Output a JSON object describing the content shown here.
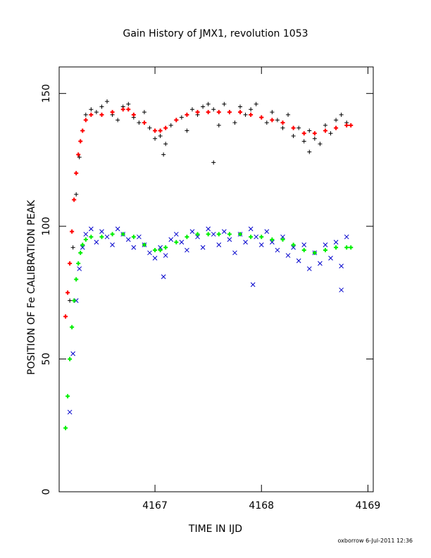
{
  "chart_data": {
    "type": "scatter",
    "title": "Gain History of JMX1, revolution 1053",
    "xlabel": "TIME IN IJD",
    "ylabel": "POSITION OF Fe CALIBRATION PEAK",
    "xlim": [
      4166.1,
      4169.05
    ],
    "ylim": [
      0,
      160
    ],
    "xticks": [
      4167,
      4168,
      4169
    ],
    "yticks": [
      0,
      50,
      100,
      150
    ],
    "grid": false,
    "footer": "oxborrow  6-Jul-2011 12:36",
    "series": [
      {
        "marker": "+",
        "color": "#000000",
        "x": [
          4166.2,
          4166.23,
          4166.26,
          4166.29,
          4166.32,
          4166.35,
          4166.4,
          4166.45,
          4166.5,
          4166.55,
          4166.6,
          4166.65,
          4166.7,
          4166.75,
          4166.8,
          4166.85,
          4166.9,
          4166.95,
          4167.0,
          4167.05,
          4167.1,
          4167.15,
          4167.2,
          4167.25,
          4167.3,
          4167.35,
          4167.4,
          4167.45,
          4167.5,
          4167.55,
          4167.6,
          4167.65,
          4167.7,
          4167.75,
          4167.8,
          4167.85,
          4167.9,
          4167.95,
          4168.0,
          4168.05,
          4168.1,
          4168.15,
          4168.2,
          4168.25,
          4168.3,
          4168.35,
          4168.4,
          4168.45,
          4168.5,
          4168.55,
          4168.6,
          4168.65,
          4168.7,
          4168.75,
          4168.8,
          4167.55,
          4167.08,
          4168.45
        ],
        "y": [
          72,
          92,
          112,
          126,
          136,
          142,
          144,
          143,
          145,
          147,
          142,
          140,
          145,
          146,
          141,
          139,
          143,
          137,
          133,
          134,
          131,
          138,
          140,
          141,
          136,
          144,
          142,
          145,
          146,
          144,
          138,
          146,
          143,
          139,
          145,
          142,
          144,
          146,
          141,
          139,
          143,
          140,
          137,
          142,
          134,
          137,
          132,
          136,
          133,
          131,
          138,
          135,
          140,
          142,
          139,
          124,
          127,
          128
        ]
      },
      {
        "marker": "x",
        "color": "#0000cc",
        "x": [
          4166.2,
          4166.23,
          4166.26,
          4166.29,
          4166.32,
          4166.35,
          4166.4,
          4166.45,
          4166.5,
          4166.55,
          4166.6,
          4166.65,
          4166.7,
          4166.75,
          4166.8,
          4166.85,
          4166.9,
          4166.95,
          4167.0,
          4167.05,
          4167.1,
          4167.15,
          4167.2,
          4167.25,
          4167.3,
          4167.35,
          4167.4,
          4167.45,
          4167.5,
          4167.55,
          4167.6,
          4167.65,
          4167.7,
          4167.75,
          4167.8,
          4167.85,
          4167.9,
          4167.95,
          4168.0,
          4168.05,
          4168.1,
          4168.15,
          4168.2,
          4168.25,
          4168.3,
          4168.35,
          4168.4,
          4168.45,
          4168.5,
          4168.55,
          4168.6,
          4168.65,
          4168.7,
          4168.75,
          4168.8,
          4167.92,
          4167.08,
          4168.75
        ],
        "y": [
          30,
          52,
          72,
          84,
          92,
          97,
          99,
          94,
          98,
          96,
          93,
          99,
          97,
          95,
          92,
          96,
          93,
          90,
          88,
          92,
          89,
          95,
          97,
          94,
          91,
          98,
          96,
          92,
          99,
          97,
          93,
          98,
          95,
          90,
          97,
          94,
          99,
          96,
          93,
          98,
          94,
          91,
          96,
          89,
          92,
          87,
          93,
          84,
          90,
          86,
          93,
          88,
          94,
          85,
          96,
          78,
          81,
          76
        ]
      },
      {
        "marker": "+",
        "color": "#ff0000",
        "x": [
          4166.16,
          4166.18,
          4166.2,
          4166.22,
          4166.24,
          4166.26,
          4166.28,
          4166.3,
          4166.32,
          4166.35,
          4166.4,
          4166.5,
          4166.6,
          4166.7,
          4166.75,
          4166.8,
          4166.9,
          4167.0,
          4167.05,
          4167.1,
          4167.2,
          4167.3,
          4167.4,
          4167.5,
          4167.6,
          4167.7,
          4167.8,
          4167.9,
          4168.0,
          4168.1,
          4168.2,
          4168.3,
          4168.4,
          4168.5,
          4168.6,
          4168.7,
          4168.8,
          4168.84
        ],
        "y": [
          66,
          75,
          86,
          98,
          110,
          120,
          127,
          132,
          136,
          140,
          142,
          142,
          143,
          144,
          144,
          142,
          139,
          136,
          136,
          137,
          140,
          142,
          143,
          143,
          143,
          143,
          143,
          142,
          141,
          140,
          139,
          137,
          135,
          135,
          136,
          137,
          138,
          138
        ]
      },
      {
        "marker": "+",
        "color": "#00ee00",
        "x": [
          4166.16,
          4166.18,
          4166.2,
          4166.22,
          4166.24,
          4166.26,
          4166.28,
          4166.3,
          4166.32,
          4166.35,
          4166.4,
          4166.5,
          4166.6,
          4166.7,
          4166.8,
          4166.9,
          4167.0,
          4167.05,
          4167.1,
          4167.2,
          4167.3,
          4167.4,
          4167.5,
          4167.6,
          4167.7,
          4167.8,
          4167.9,
          4168.0,
          4168.1,
          4168.2,
          4168.3,
          4168.4,
          4168.5,
          4168.6,
          4168.7,
          4168.8,
          4168.84
        ],
        "y": [
          24,
          36,
          50,
          62,
          72,
          80,
          86,
          90,
          93,
          95,
          96,
          96,
          97,
          97,
          96,
          93,
          91,
          91,
          92,
          94,
          96,
          97,
          97,
          97,
          97,
          97,
          96,
          96,
          95,
          95,
          93,
          91,
          90,
          91,
          92,
          92,
          92
        ]
      }
    ]
  }
}
